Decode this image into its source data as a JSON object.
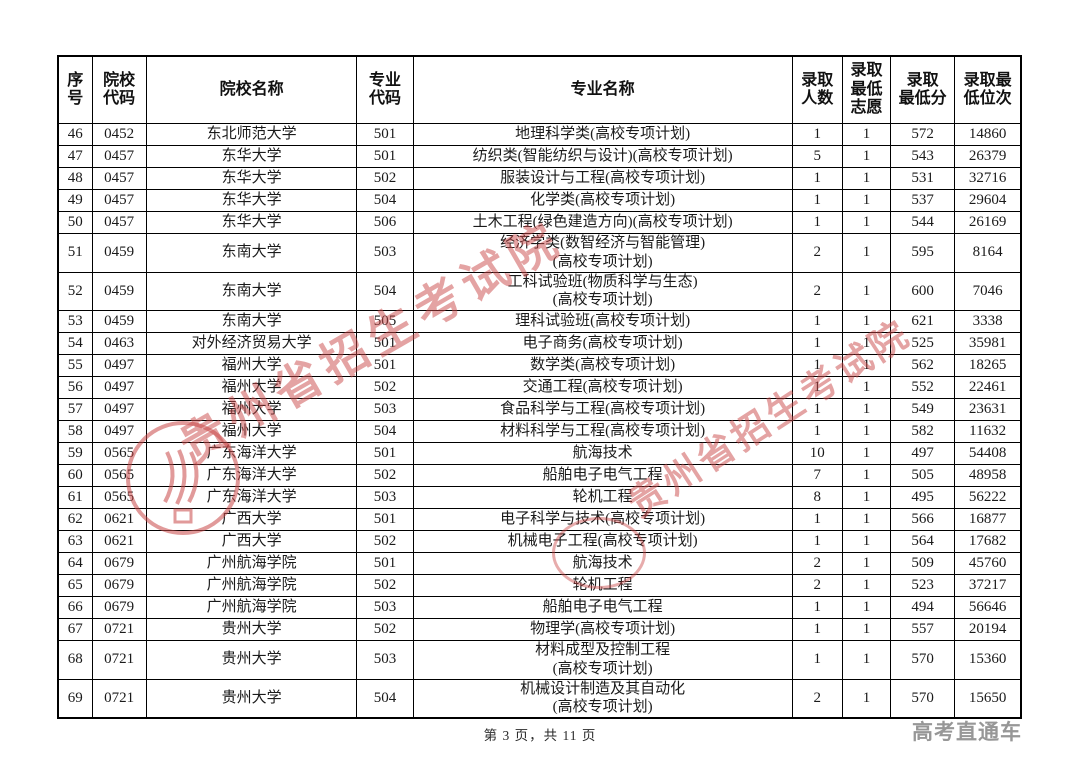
{
  "table": {
    "headers": [
      "序号",
      "院校\n代码",
      "院校名称",
      "专业\n代码",
      "专业名称",
      "录取\n人数",
      "录取\n最低\n志愿",
      "录取\n最低分",
      "录取最\n低位次"
    ],
    "rows": [
      [
        "46",
        "0452",
        "东北师范大学",
        "501",
        "地理科学类(高校专项计划)",
        "1",
        "1",
        "572",
        "14860"
      ],
      [
        "47",
        "0457",
        "东华大学",
        "501",
        "纺织类(智能纺织与设计)(高校专项计划)",
        "5",
        "1",
        "543",
        "26379"
      ],
      [
        "48",
        "0457",
        "东华大学",
        "502",
        "服装设计与工程(高校专项计划)",
        "1",
        "1",
        "531",
        "32716"
      ],
      [
        "49",
        "0457",
        "东华大学",
        "504",
        "化学类(高校专项计划)",
        "1",
        "1",
        "537",
        "29604"
      ],
      [
        "50",
        "0457",
        "东华大学",
        "506",
        "土木工程(绿色建造方向)(高校专项计划)",
        "1",
        "1",
        "544",
        "26169"
      ],
      [
        "51",
        "0459",
        "东南大学",
        "503",
        "经济学类(数智经济与智能管理)\n(高校专项计划)",
        "2",
        "1",
        "595",
        "8164"
      ],
      [
        "52",
        "0459",
        "东南大学",
        "504",
        "工科试验班(物质科学与生态)\n(高校专项计划)",
        "2",
        "1",
        "600",
        "7046"
      ],
      [
        "53",
        "0459",
        "东南大学",
        "505",
        "理科试验班(高校专项计划)",
        "1",
        "1",
        "621",
        "3338"
      ],
      [
        "54",
        "0463",
        "对外经济贸易大学",
        "501",
        "电子商务(高校专项计划)",
        "1",
        "1",
        "525",
        "35981"
      ],
      [
        "55",
        "0497",
        "福州大学",
        "501",
        "数学类(高校专项计划)",
        "1",
        "1",
        "562",
        "18265"
      ],
      [
        "56",
        "0497",
        "福州大学",
        "502",
        "交通工程(高校专项计划)",
        "1",
        "1",
        "552",
        "22461"
      ],
      [
        "57",
        "0497",
        "福州大学",
        "503",
        "食品科学与工程(高校专项计划)",
        "1",
        "1",
        "549",
        "23631"
      ],
      [
        "58",
        "0497",
        "福州大学",
        "504",
        "材料科学与工程(高校专项计划)",
        "1",
        "1",
        "582",
        "11632"
      ],
      [
        "59",
        "0565",
        "广东海洋大学",
        "501",
        "航海技术",
        "10",
        "1",
        "497",
        "54408"
      ],
      [
        "60",
        "0565",
        "广东海洋大学",
        "502",
        "船舶电子电气工程",
        "7",
        "1",
        "505",
        "48958"
      ],
      [
        "61",
        "0565",
        "广东海洋大学",
        "503",
        "轮机工程",
        "8",
        "1",
        "495",
        "56222"
      ],
      [
        "62",
        "0621",
        "广西大学",
        "501",
        "电子科学与技术(高校专项计划)",
        "1",
        "1",
        "566",
        "16877"
      ],
      [
        "63",
        "0621",
        "广西大学",
        "502",
        "机械电子工程(高校专项计划)",
        "1",
        "1",
        "564",
        "17682"
      ],
      [
        "64",
        "0679",
        "广州航海学院",
        "501",
        "航海技术",
        "2",
        "1",
        "509",
        "45760"
      ],
      [
        "65",
        "0679",
        "广州航海学院",
        "502",
        "轮机工程",
        "2",
        "1",
        "523",
        "37217"
      ],
      [
        "66",
        "0679",
        "广州航海学院",
        "503",
        "船舶电子电气工程",
        "1",
        "1",
        "494",
        "56646"
      ],
      [
        "67",
        "0721",
        "贵州大学",
        "502",
        "物理学(高校专项计划)",
        "1",
        "1",
        "557",
        "20194"
      ],
      [
        "68",
        "0721",
        "贵州大学",
        "503",
        "材料成型及控制工程\n(高校专项计划)",
        "1",
        "1",
        "570",
        "15360"
      ],
      [
        "69",
        "0721",
        "贵州大学",
        "504",
        "机械设计制造及其自动化\n(高校专项计划)",
        "2",
        "1",
        "570",
        "15650"
      ]
    ]
  },
  "watermark": {
    "text": "贵州省招生考试院",
    "color": "#c94848"
  },
  "footer": {
    "page_info": "第 3 页，共 11 页",
    "brand": "高考直通车"
  }
}
